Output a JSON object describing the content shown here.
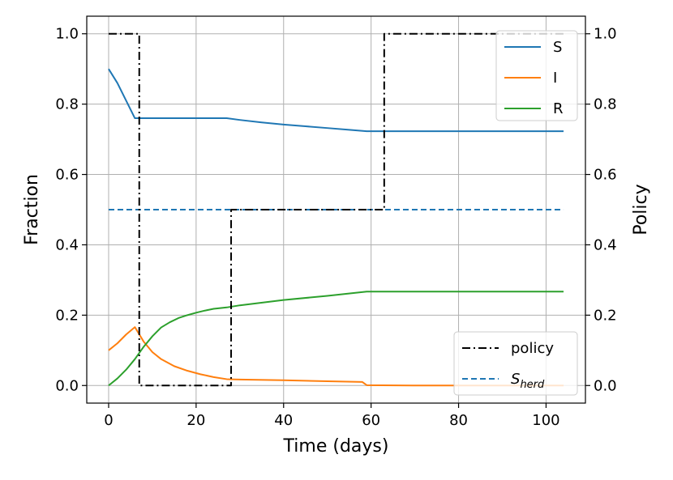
{
  "chart_data": {
    "type": "line",
    "xlabel": "Time (days)",
    "ylabel_left": "Fraction",
    "ylabel_right": "Policy",
    "xlim": [
      -5,
      109
    ],
    "ylim_left": [
      -0.05,
      1.05
    ],
    "ylim_right": [
      -0.05,
      1.05
    ],
    "x_ticks": [
      0,
      20,
      40,
      60,
      80,
      100
    ],
    "y_ticks": [
      0.0,
      0.2,
      0.4,
      0.6,
      0.8,
      1.0
    ],
    "y_tick_labels": [
      "0.0",
      "0.2",
      "0.4",
      "0.6",
      "0.8",
      "1.0"
    ],
    "grid": true,
    "series_left": [
      {
        "name": "S",
        "color": "#1f77b4",
        "style": "solid",
        "points": [
          [
            0,
            0.9
          ],
          [
            2,
            0.86
          ],
          [
            4,
            0.81
          ],
          [
            6,
            0.76
          ],
          [
            10,
            0.76
          ],
          [
            20,
            0.76
          ],
          [
            27,
            0.76
          ],
          [
            30,
            0.755
          ],
          [
            35,
            0.748
          ],
          [
            40,
            0.742
          ],
          [
            45,
            0.737
          ],
          [
            50,
            0.732
          ],
          [
            55,
            0.727
          ],
          [
            59,
            0.723
          ],
          [
            70,
            0.723
          ],
          [
            80,
            0.723
          ],
          [
            90,
            0.723
          ],
          [
            104,
            0.723
          ]
        ]
      },
      {
        "name": "I",
        "color": "#ff7f0e",
        "style": "solid",
        "points": [
          [
            0,
            0.1
          ],
          [
            2,
            0.12
          ],
          [
            4,
            0.145
          ],
          [
            6,
            0.166
          ],
          [
            8,
            0.125
          ],
          [
            10,
            0.095
          ],
          [
            12,
            0.075
          ],
          [
            15,
            0.055
          ],
          [
            18,
            0.042
          ],
          [
            21,
            0.032
          ],
          [
            24,
            0.024
          ],
          [
            27,
            0.018
          ],
          [
            30,
            0.017
          ],
          [
            40,
            0.015
          ],
          [
            50,
            0.012
          ],
          [
            58,
            0.01
          ],
          [
            59,
            0.001
          ],
          [
            70,
            0.0
          ],
          [
            80,
            0.0
          ],
          [
            90,
            0.0
          ],
          [
            104,
            0.0
          ]
        ]
      },
      {
        "name": "R",
        "color": "#2ca02c",
        "style": "solid",
        "points": [
          [
            0,
            0.0
          ],
          [
            2,
            0.02
          ],
          [
            4,
            0.045
          ],
          [
            6,
            0.075
          ],
          [
            8,
            0.11
          ],
          [
            10,
            0.14
          ],
          [
            12,
            0.165
          ],
          [
            14,
            0.18
          ],
          [
            16,
            0.192
          ],
          [
            18,
            0.2
          ],
          [
            20,
            0.207
          ],
          [
            22,
            0.213
          ],
          [
            24,
            0.218
          ],
          [
            27,
            0.222
          ],
          [
            30,
            0.228
          ],
          [
            40,
            0.243
          ],
          [
            50,
            0.255
          ],
          [
            59,
            0.267
          ],
          [
            70,
            0.267
          ],
          [
            80,
            0.267
          ],
          [
            90,
            0.267
          ],
          [
            104,
            0.267
          ]
        ]
      },
      {
        "name": "S_herd",
        "color": "#1f77b4",
        "style": "dashed",
        "points": [
          [
            0,
            0.5
          ],
          [
            104,
            0.5
          ]
        ]
      }
    ],
    "series_right": [
      {
        "name": "policy",
        "color": "#000000",
        "style": "dashdot",
        "points": [
          [
            0,
            1
          ],
          [
            7,
            1
          ],
          [
            7,
            0
          ],
          [
            28,
            0
          ],
          [
            28,
            0.5
          ],
          [
            63,
            0.5
          ],
          [
            63,
            1
          ],
          [
            104,
            1
          ]
        ]
      }
    ],
    "legend_top_right": [
      {
        "label": "S",
        "color": "#1f77b4",
        "style": "solid"
      },
      {
        "label": "I",
        "color": "#ff7f0e",
        "style": "solid"
      },
      {
        "label": "R",
        "color": "#2ca02c",
        "style": "solid"
      }
    ],
    "legend_bottom_right": [
      {
        "label": "policy",
        "color": "#000000",
        "style": "dashdot"
      },
      {
        "label": "S",
        "subscript": "herd",
        "color": "#1f77b4",
        "style": "dashed"
      }
    ]
  }
}
